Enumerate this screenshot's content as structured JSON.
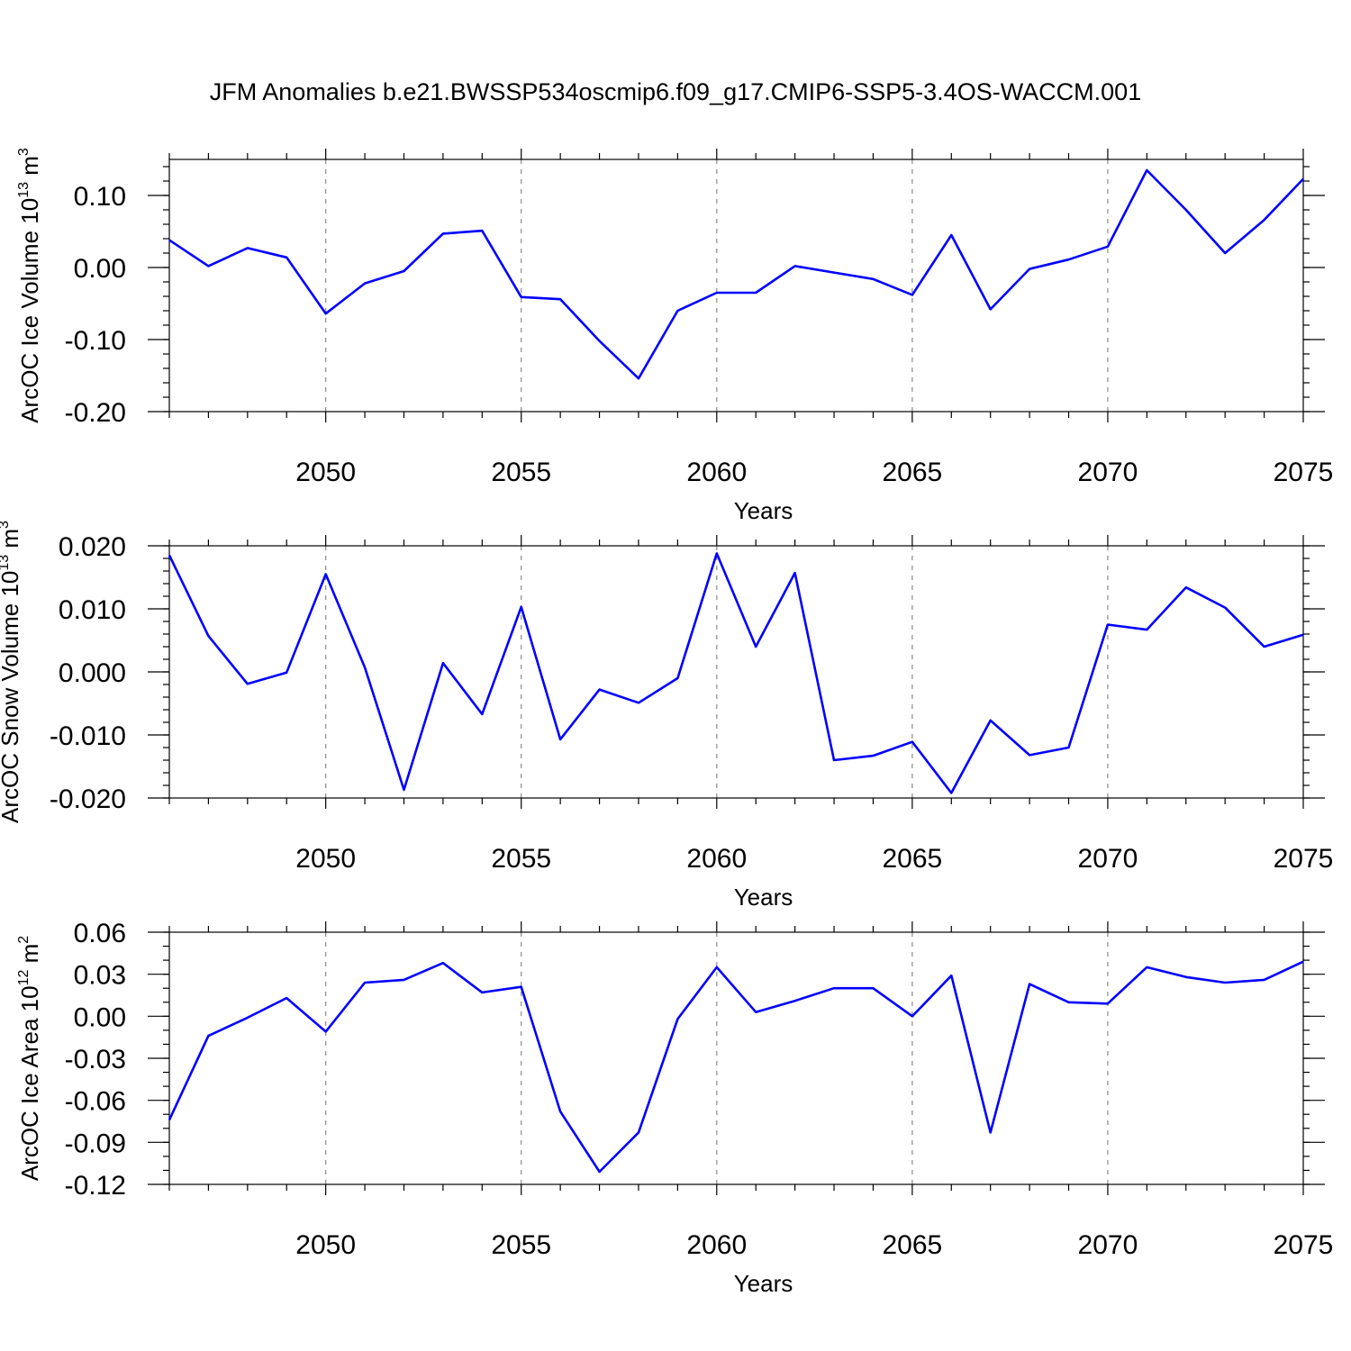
{
  "title": "JFM Anomalies b.e21.BWSSP534oscmip6.f09_g17.CMIP6-SSP5-3.4OS-WACCM.001",
  "chart_data": [
    {
      "type": "line",
      "ylabel": "ArcOC Ice Volume 10",
      "ylabel_exp": "13",
      "ylabel_unit": " m",
      "ylabel_unit_exp": "3",
      "xlabel": "Years",
      "xlim": [
        2046,
        2075
      ],
      "ylim": [
        -0.2,
        0.15
      ],
      "yticks": [
        -0.2,
        -0.1,
        0.0,
        0.1
      ],
      "ytick_labels": [
        "-0.20",
        "-0.10",
        "0.00",
        "0.10"
      ],
      "yminor_step": 0.02,
      "xticks": [
        2050,
        2055,
        2060,
        2065,
        2070,
        2075
      ],
      "xtick_labels": [
        "2050",
        "2055",
        "2060",
        "2065",
        "2070",
        "2075"
      ],
      "series": [
        {
          "name": "ArcOC Ice Volume",
          "color": "#0000ff",
          "x": [
            2046,
            2047,
            2048,
            2049,
            2050,
            2051,
            2052,
            2053,
            2054,
            2055,
            2056,
            2057,
            2058,
            2059,
            2060,
            2061,
            2062,
            2063,
            2064,
            2065,
            2066,
            2067,
            2068,
            2069,
            2070,
            2071,
            2072,
            2073,
            2074,
            2075
          ],
          "values": [
            0.038,
            0.002,
            0.027,
            0.014,
            -0.064,
            -0.022,
            -0.005,
            0.047,
            0.051,
            -0.041,
            -0.044,
            -0.102,
            -0.154,
            -0.06,
            -0.035,
            -0.035,
            0.002,
            -0.007,
            -0.016,
            -0.038,
            0.045,
            -0.058,
            -0.002,
            0.011,
            0.029,
            0.135,
            0.08,
            0.02,
            0.066,
            0.123
          ]
        }
      ]
    },
    {
      "type": "line",
      "ylabel": "ArcOC Snow Volume 10",
      "ylabel_exp": "13",
      "ylabel_unit": " m",
      "ylabel_unit_exp": "3",
      "xlabel": "Years",
      "xlim": [
        2046,
        2075
      ],
      "ylim": [
        -0.02,
        0.02
      ],
      "yticks": [
        -0.02,
        -0.01,
        0.0,
        0.01,
        0.02
      ],
      "ytick_labels": [
        "-0.020",
        "-0.010",
        "0.000",
        "0.010",
        "0.020"
      ],
      "yminor_step": 0.002,
      "xticks": [
        2050,
        2055,
        2060,
        2065,
        2070,
        2075
      ],
      "xtick_labels": [
        "2050",
        "2055",
        "2060",
        "2065",
        "2070",
        "2075"
      ],
      "series": [
        {
          "name": "ArcOC Snow Volume",
          "color": "#0000ff",
          "x": [
            2046,
            2047,
            2048,
            2049,
            2050,
            2051,
            2052,
            2053,
            2054,
            2055,
            2056,
            2057,
            2058,
            2059,
            2060,
            2061,
            2062,
            2063,
            2064,
            2065,
            2066,
            2067,
            2068,
            2069,
            2070,
            2071,
            2072,
            2073,
            2074,
            2075
          ],
          "values": [
            0.0185,
            0.0057,
            -0.0019,
            -0.0001,
            0.0155,
            0.0007,
            -0.0187,
            0.0014,
            -0.0067,
            0.0103,
            -0.0107,
            -0.0028,
            -0.0049,
            -0.001,
            0.0188,
            0.004,
            0.0157,
            -0.014,
            -0.0133,
            -0.0111,
            -0.0192,
            -0.0077,
            -0.0132,
            -0.012,
            0.0075,
            0.0067,
            0.0134,
            0.0102,
            0.004,
            0.0059
          ]
        }
      ]
    },
    {
      "type": "line",
      "ylabel": "ArcOC Ice Area 10",
      "ylabel_exp": "12",
      "ylabel_unit": " m",
      "ylabel_unit_exp": "2",
      "xlabel": "Years",
      "xlim": [
        2046,
        2075
      ],
      "ylim": [
        -0.12,
        0.06
      ],
      "yticks": [
        -0.12,
        -0.09,
        -0.06,
        -0.03,
        0.0,
        0.03,
        0.06
      ],
      "ytick_labels": [
        "-0.12",
        "-0.09",
        "-0.06",
        "-0.03",
        "0.00",
        "0.03",
        "0.06"
      ],
      "yminor_step": 0.01,
      "xticks": [
        2050,
        2055,
        2060,
        2065,
        2070,
        2075
      ],
      "xtick_labels": [
        "2050",
        "2055",
        "2060",
        "2065",
        "2070",
        "2075"
      ],
      "series": [
        {
          "name": "ArcOC Ice Area",
          "color": "#0000ff",
          "x": [
            2046,
            2047,
            2048,
            2049,
            2050,
            2051,
            2052,
            2053,
            2054,
            2055,
            2056,
            2057,
            2058,
            2059,
            2060,
            2061,
            2062,
            2063,
            2064,
            2065,
            2066,
            2067,
            2068,
            2069,
            2070,
            2071,
            2072,
            2073,
            2074,
            2075
          ],
          "values": [
            -0.074,
            -0.014,
            -0.001,
            0.013,
            -0.011,
            0.024,
            0.026,
            0.038,
            0.017,
            0.021,
            -0.068,
            -0.111,
            -0.083,
            -0.002,
            0.035,
            0.003,
            0.011,
            0.02,
            0.02,
            0.0,
            0.029,
            -0.083,
            0.023,
            0.01,
            0.009,
            0.035,
            0.028,
            0.024,
            0.026,
            0.039
          ]
        }
      ]
    }
  ]
}
